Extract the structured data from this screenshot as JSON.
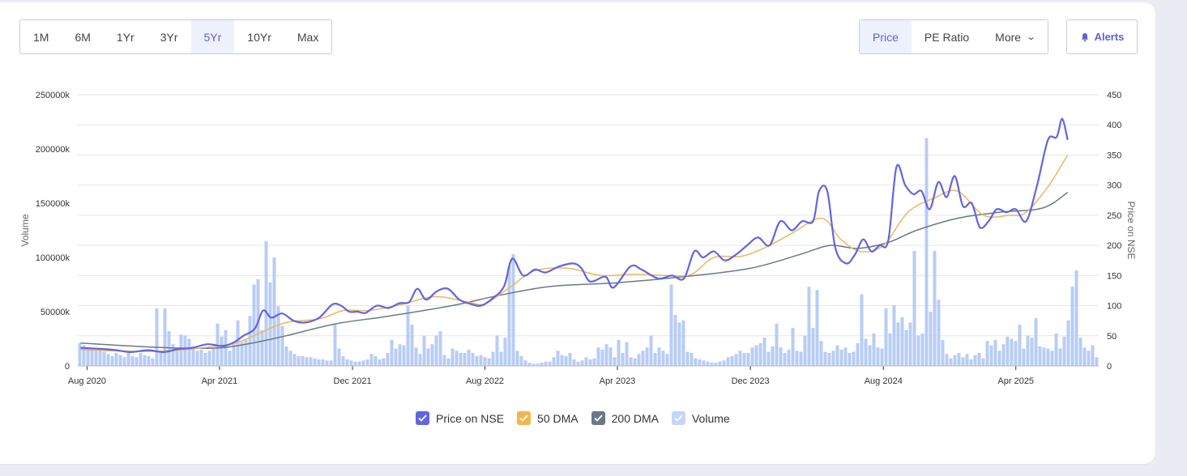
{
  "range_buttons": [
    "1M",
    "6M",
    "1Yr",
    "3Yr",
    "5Yr",
    "10Yr",
    "Max"
  ],
  "active_range": "5Yr",
  "type_buttons": {
    "price": "Price",
    "pe": "PE Ratio",
    "more": "More"
  },
  "alerts_label": "Alerts",
  "colors": {
    "price": "#6365e0",
    "dma50": "#e9b860",
    "dma200": "#6c7887",
    "volume": "#b8cdf5",
    "accent": "#5f62d3"
  },
  "legend": [
    {
      "label": "Price on NSE",
      "color": "#6365e0"
    },
    {
      "label": "50 DMA",
      "color": "#f2b64c"
    },
    {
      "label": "200 DMA",
      "color": "#6c7887"
    },
    {
      "label": "Volume",
      "color": "#c4d6f8"
    }
  ],
  "chart_data": {
    "type": "line",
    "x_range": [
      "2020-07-15",
      "2025-08-31"
    ],
    "x_ticks": [
      {
        "date": "2020-08-01",
        "label": "Aug 2020"
      },
      {
        "date": "2021-04-01",
        "label": "Apr 2021"
      },
      {
        "date": "2021-12-01",
        "label": "Dec 2021"
      },
      {
        "date": "2022-08-01",
        "label": "Aug 2022"
      },
      {
        "date": "2023-04-01",
        "label": "Apr 2023"
      },
      {
        "date": "2023-12-01",
        "label": "Dec 2023"
      },
      {
        "date": "2024-08-01",
        "label": "Aug 2024"
      },
      {
        "date": "2025-04-01",
        "label": "Apr 2025"
      }
    ],
    "y_left": {
      "label": "Volume",
      "range": [
        0,
        250000000
      ],
      "ticks": [
        {
          "value": 0,
          "label": "0"
        },
        {
          "value": 50000000,
          "label": "50000k"
        },
        {
          "value": 100000000,
          "label": "100000k"
        },
        {
          "value": 150000000,
          "label": "150000k"
        },
        {
          "value": 200000000,
          "label": "200000k"
        },
        {
          "value": 250000000,
          "label": "250000k"
        }
      ]
    },
    "y_right": {
      "label": "Price on NSE",
      "range": [
        0,
        450
      ],
      "ticks": [
        0,
        50,
        100,
        150,
        200,
        250,
        300,
        350,
        400,
        450
      ]
    },
    "grid": true,
    "series": [
      {
        "name": "Price on NSE",
        "axis": "right",
        "points": [
          [
            "2020-07-20",
            30
          ],
          [
            "2020-09-15",
            27
          ],
          [
            "2020-10-20",
            23
          ],
          [
            "2020-11-20",
            26
          ],
          [
            "2020-12-20",
            23
          ],
          [
            "2021-01-15",
            28
          ],
          [
            "2021-02-10",
            30
          ],
          [
            "2021-03-10",
            36
          ],
          [
            "2021-04-05",
            33
          ],
          [
            "2021-04-25",
            38
          ],
          [
            "2021-05-15",
            50
          ],
          [
            "2021-06-05",
            62
          ],
          [
            "2021-06-20",
            92
          ],
          [
            "2021-07-05",
            80
          ],
          [
            "2021-07-25",
            87
          ],
          [
            "2021-08-15",
            75
          ],
          [
            "2021-09-05",
            72
          ],
          [
            "2021-10-01",
            80
          ],
          [
            "2021-10-25",
            102
          ],
          [
            "2021-11-10",
            100
          ],
          [
            "2021-11-25",
            90
          ],
          [
            "2021-12-10",
            90
          ],
          [
            "2021-12-25",
            88
          ],
          [
            "2022-01-15",
            100
          ],
          [
            "2022-02-05",
            96
          ],
          [
            "2022-02-25",
            104
          ],
          [
            "2022-03-15",
            106
          ],
          [
            "2022-03-30",
            128
          ],
          [
            "2022-04-15",
            110
          ],
          [
            "2022-05-05",
            124
          ],
          [
            "2022-05-25",
            128
          ],
          [
            "2022-06-15",
            110
          ],
          [
            "2022-07-05",
            103
          ],
          [
            "2022-07-25",
            100
          ],
          [
            "2022-08-15",
            112
          ],
          [
            "2022-09-05",
            132
          ],
          [
            "2022-09-20",
            178
          ],
          [
            "2022-10-10",
            150
          ],
          [
            "2022-11-01",
            160
          ],
          [
            "2022-11-20",
            155
          ],
          [
            "2022-12-15",
            165
          ],
          [
            "2023-01-10",
            170
          ],
          [
            "2023-01-25",
            162
          ],
          [
            "2023-02-10",
            140
          ],
          [
            "2023-03-10",
            148
          ],
          [
            "2023-03-25",
            130
          ],
          [
            "2023-04-25",
            165
          ],
          [
            "2023-05-15",
            160
          ],
          [
            "2023-06-15",
            145
          ],
          [
            "2023-07-10",
            150
          ],
          [
            "2023-08-01",
            145
          ],
          [
            "2023-08-20",
            190
          ],
          [
            "2023-09-05",
            180
          ],
          [
            "2023-09-25",
            190
          ],
          [
            "2023-10-15",
            175
          ],
          [
            "2023-11-05",
            185
          ],
          [
            "2023-11-25",
            200
          ],
          [
            "2023-12-15",
            213
          ],
          [
            "2024-01-05",
            200
          ],
          [
            "2024-01-25",
            240
          ],
          [
            "2024-02-15",
            225
          ],
          [
            "2024-03-05",
            240
          ],
          [
            "2024-03-25",
            240
          ],
          [
            "2024-04-05",
            290
          ],
          [
            "2024-04-20",
            290
          ],
          [
            "2024-05-05",
            195
          ],
          [
            "2024-05-25",
            170
          ],
          [
            "2024-06-10",
            185
          ],
          [
            "2024-06-25",
            210
          ],
          [
            "2024-07-10",
            190
          ],
          [
            "2024-07-25",
            200
          ],
          [
            "2024-08-10",
            208
          ],
          [
            "2024-08-25",
            330
          ],
          [
            "2024-09-10",
            300
          ],
          [
            "2024-09-25",
            285
          ],
          [
            "2024-10-10",
            290
          ],
          [
            "2024-10-25",
            260
          ],
          [
            "2024-11-10",
            305
          ],
          [
            "2024-11-25",
            280
          ],
          [
            "2024-12-10",
            315
          ],
          [
            "2024-12-25",
            265
          ],
          [
            "2025-01-10",
            270
          ],
          [
            "2025-01-25",
            230
          ],
          [
            "2025-02-10",
            240
          ],
          [
            "2025-02-25",
            260
          ],
          [
            "2025-03-15",
            255
          ],
          [
            "2025-04-01",
            260
          ],
          [
            "2025-04-20",
            240
          ],
          [
            "2025-05-10",
            300
          ],
          [
            "2025-05-30",
            375
          ],
          [
            "2025-06-15",
            380
          ],
          [
            "2025-06-25",
            410
          ],
          [
            "2025-07-05",
            375
          ]
        ]
      },
      {
        "name": "50 DMA",
        "axis": "right",
        "points": [
          [
            "2020-07-20",
            27
          ],
          [
            "2020-09-15",
            25
          ],
          [
            "2020-11-20",
            24
          ],
          [
            "2021-01-15",
            26
          ],
          [
            "2021-03-10",
            31
          ],
          [
            "2021-05-01",
            38
          ],
          [
            "2021-06-15",
            55
          ],
          [
            "2021-08-01",
            72
          ],
          [
            "2021-10-01",
            78
          ],
          [
            "2021-11-15",
            92
          ],
          [
            "2022-01-01",
            92
          ],
          [
            "2022-03-01",
            102
          ],
          [
            "2022-05-01",
            115
          ],
          [
            "2022-07-01",
            106
          ],
          [
            "2022-08-01",
            103
          ],
          [
            "2022-09-15",
            130
          ],
          [
            "2022-11-01",
            158
          ],
          [
            "2023-01-01",
            162
          ],
          [
            "2023-03-01",
            150
          ],
          [
            "2023-05-01",
            152
          ],
          [
            "2023-07-01",
            150
          ],
          [
            "2023-08-15",
            152
          ],
          [
            "2023-09-25",
            180
          ],
          [
            "2023-11-15",
            182
          ],
          [
            "2024-01-01",
            198
          ],
          [
            "2024-02-15",
            220
          ],
          [
            "2024-04-10",
            245
          ],
          [
            "2024-05-15",
            210
          ],
          [
            "2024-06-20",
            190
          ],
          [
            "2024-08-01",
            200
          ],
          [
            "2024-09-15",
            255
          ],
          [
            "2024-11-01",
            278
          ],
          [
            "2024-12-15",
            290
          ],
          [
            "2025-02-01",
            250
          ],
          [
            "2025-03-20",
            250
          ],
          [
            "2025-04-20",
            255
          ],
          [
            "2025-06-01",
            300
          ],
          [
            "2025-07-05",
            350
          ]
        ]
      },
      {
        "name": "200 DMA",
        "axis": "right",
        "points": [
          [
            "2020-07-20",
            38
          ],
          [
            "2020-10-01",
            34
          ],
          [
            "2021-01-01",
            30
          ],
          [
            "2021-04-01",
            30
          ],
          [
            "2021-06-01",
            38
          ],
          [
            "2021-08-01",
            50
          ],
          [
            "2021-11-01",
            70
          ],
          [
            "2022-02-01",
            82
          ],
          [
            "2022-06-01",
            100
          ],
          [
            "2022-09-01",
            118
          ],
          [
            "2022-12-01",
            132
          ],
          [
            "2023-04-01",
            138
          ],
          [
            "2023-08-01",
            148
          ],
          [
            "2023-12-01",
            162
          ],
          [
            "2024-03-01",
            185
          ],
          [
            "2024-04-25",
            200
          ],
          [
            "2024-06-15",
            195
          ],
          [
            "2024-08-10",
            205
          ],
          [
            "2024-10-01",
            225
          ],
          [
            "2024-12-15",
            245
          ],
          [
            "2025-03-01",
            255
          ],
          [
            "2025-05-20",
            262
          ],
          [
            "2025-07-05",
            288
          ]
        ]
      },
      {
        "name": "Volume",
        "axis": "left",
        "type": "bar",
        "values_k": [
          21000,
          19000,
          17000,
          16000,
          14000,
          15000,
          13000,
          11000,
          9000,
          12000,
          10000,
          8000,
          13000,
          9000,
          8000,
          12000,
          10000,
          9000,
          7000,
          53000,
          12000,
          53000,
          32000,
          20000,
          14000,
          29000,
          28000,
          25000,
          18000,
          14000,
          15000,
          12000,
          14000,
          16000,
          39000,
          27000,
          33000,
          14000,
          20000,
          42000,
          22000,
          24000,
          46000,
          75000,
          80000,
          33000,
          115000,
          77000,
          100000,
          55000,
          37000,
          18000,
          14000,
          11000,
          9000,
          9000,
          8000,
          8000,
          7000,
          6000,
          6000,
          5000,
          5000,
          38000,
          16000,
          9000,
          6000,
          5000,
          4000,
          4000,
          5000,
          6000,
          11000,
          9000,
          6000,
          7000,
          12000,
          24000,
          16000,
          20000,
          19000,
          56000,
          38000,
          17000,
          11000,
          28000,
          16000,
          20000,
          28000,
          32000,
          10000,
          7000,
          16000,
          14000,
          12000,
          12000,
          15000,
          12000,
          9000,
          10000,
          8000,
          7000,
          13000,
          28000,
          13000,
          26000,
          92000,
          103000,
          14000,
          9000,
          5000,
          3000,
          2000,
          2000,
          3000,
          4000,
          4000,
          8000,
          14000,
          10000,
          9000,
          12000,
          6000,
          4000,
          5000,
          8000,
          6000,
          7000,
          17000,
          15000,
          20000,
          17000,
          8000,
          24000,
          12000,
          22000,
          8000,
          7000,
          11000,
          14000,
          17000,
          28000,
          12000,
          17000,
          14000,
          11000,
          75000,
          47000,
          40000,
          42000,
          13000,
          12000,
          7000,
          6000,
          5000,
          4000,
          3000,
          3000,
          4000,
          5000,
          8000,
          9000,
          11000,
          14000,
          12000,
          12000,
          17000,
          19000,
          21000,
          26000,
          13000,
          18000,
          39000,
          17000,
          12000,
          15000,
          35000,
          14000,
          13000,
          28000,
          73000,
          35000,
          70000,
          23000,
          13000,
          12000,
          14000,
          19000,
          15000,
          17000,
          12000,
          13000,
          21000,
          66000,
          25000,
          19000,
          30000,
          17000,
          16000,
          53000,
          30000,
          56000,
          40000,
          45000,
          33000,
          40000,
          106000,
          28000,
          30000,
          210000,
          50000,
          106000,
          61000,
          24000,
          11000,
          7000,
          10000,
          12000,
          8000,
          11000,
          6000,
          10000,
          12000,
          7000,
          23000,
          19000,
          24000,
          14000,
          20000,
          27000,
          25000,
          23000,
          38000,
          16000,
          28000,
          26000,
          44000,
          18000,
          17000,
          16000,
          14000,
          30000,
          16000,
          27000,
          42000,
          73000,
          88000,
          26000,
          17000,
          14000,
          19000,
          8000
        ]
      }
    ]
  }
}
